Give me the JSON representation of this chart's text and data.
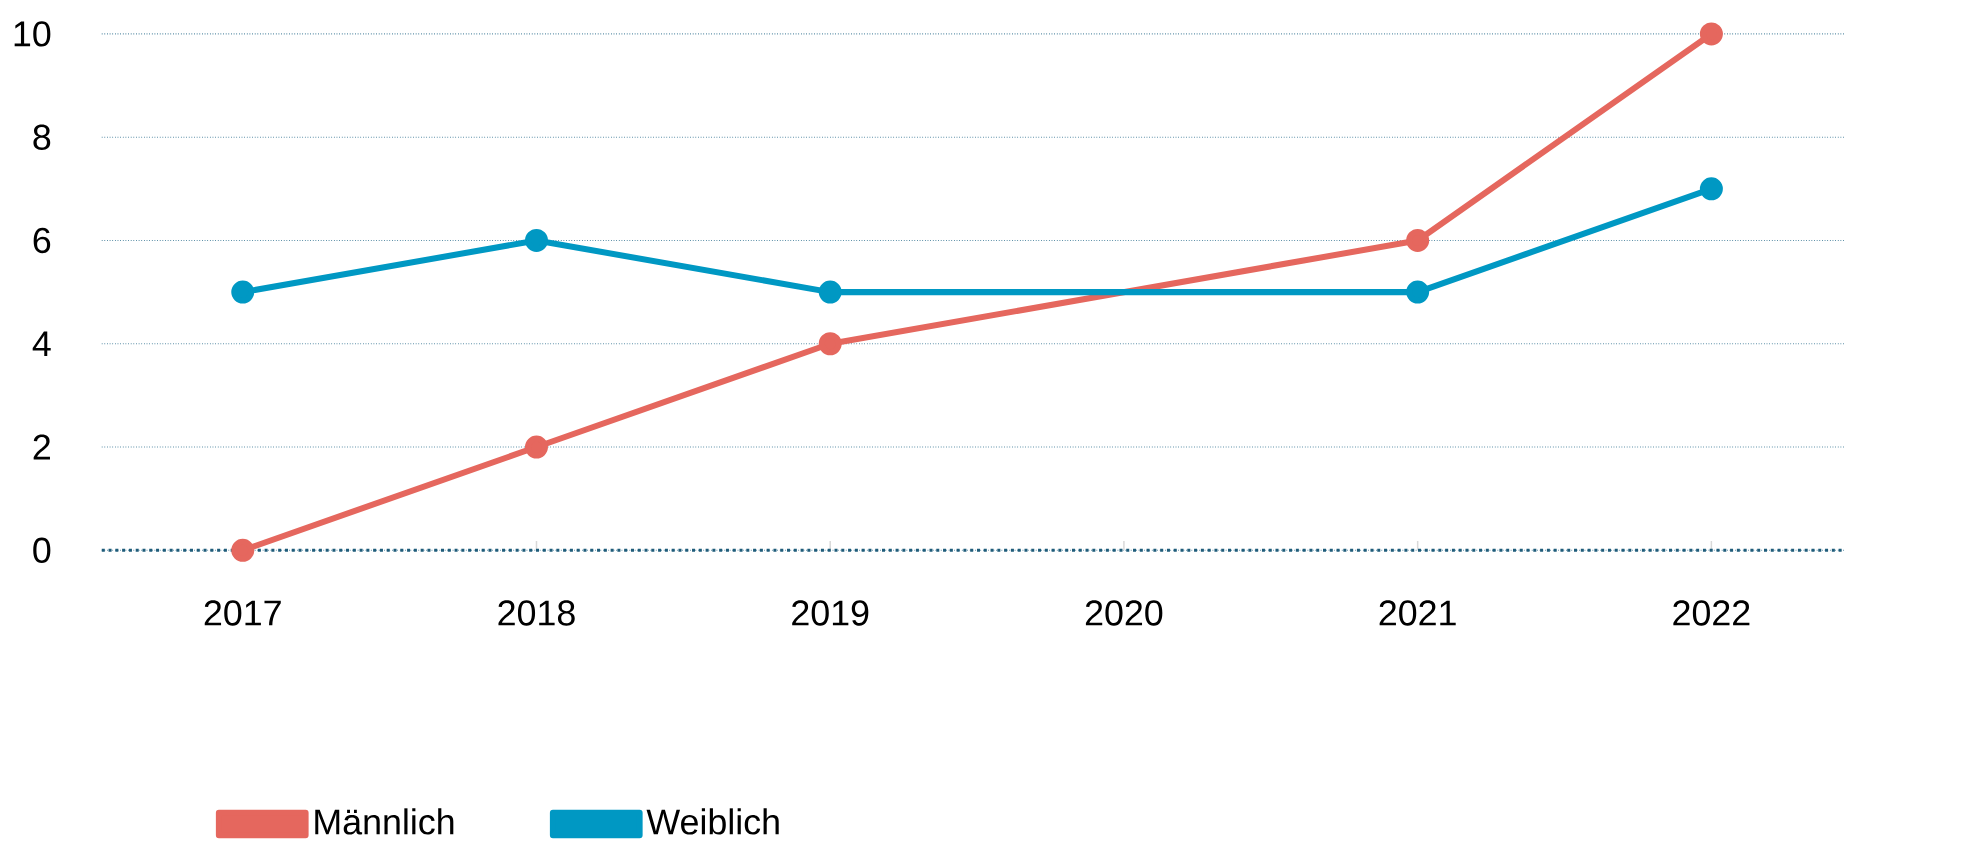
{
  "chart_data": {
    "type": "line",
    "categories": [
      "2017",
      "2018",
      "2019",
      "2020",
      "2021",
      "2022"
    ],
    "series": [
      {
        "name": "Männlich",
        "color": "#e5675e",
        "values": [
          0,
          2,
          4,
          null,
          6,
          10
        ]
      },
      {
        "name": "Weiblich",
        "color": "#0098c3",
        "values": [
          5,
          6,
          5,
          null,
          5,
          7
        ]
      }
    ],
    "ylim": [
      0,
      10
    ],
    "yticks": [
      0,
      2,
      4,
      6,
      8,
      10
    ],
    "grid": "y",
    "legend": "bottom left",
    "marker": "circle",
    "line_style": "solid"
  }
}
